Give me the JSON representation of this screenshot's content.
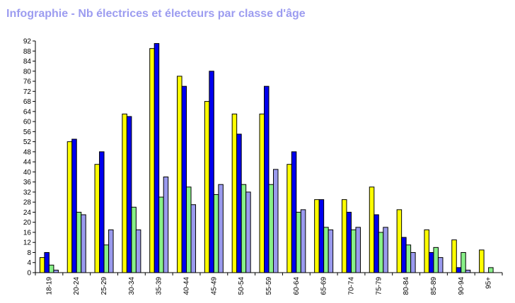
{
  "title": "Infographie - Nb électrices et électeurs par classe d'âge",
  "chart_data": {
    "type": "bar",
    "title": "Infographie - Nb électrices et électeurs par classe d'âge",
    "xlabel": "",
    "ylabel": "",
    "ylim": [
      0,
      92
    ],
    "yticks": [
      0,
      4,
      8,
      12,
      16,
      20,
      24,
      28,
      32,
      36,
      40,
      44,
      48,
      52,
      56,
      60,
      64,
      68,
      72,
      76,
      80,
      84,
      88,
      92
    ],
    "grid": false,
    "legend": "none",
    "categories": [
      "18-19",
      "20-24",
      "25-29",
      "30-34",
      "35-39",
      "40-44",
      "45-49",
      "50-54",
      "55-59",
      "60-64",
      "65-69",
      "70-74",
      "75-79",
      "80-84",
      "85-89",
      "90-94",
      "95+"
    ],
    "series": [
      {
        "color": "#ffff00",
        "values": [
          6,
          52,
          43,
          63,
          89,
          78,
          68,
          63,
          63,
          43,
          29,
          29,
          34,
          25,
          17,
          13,
          9
        ]
      },
      {
        "color": "#0000ee",
        "values": [
          8,
          53,
          48,
          62,
          91,
          74,
          80,
          55,
          74,
          48,
          29,
          24,
          23,
          14,
          8,
          2,
          0
        ]
      },
      {
        "color": "#88f088",
        "values": [
          3,
          24,
          11,
          26,
          30,
          34,
          31,
          35,
          35,
          24,
          18,
          17,
          16,
          11,
          10,
          8,
          2
        ]
      },
      {
        "color": "#9a9aee",
        "values": [
          1,
          23,
          17,
          17,
          38,
          27,
          35,
          32,
          41,
          25,
          17,
          18,
          18,
          8,
          6,
          1,
          0
        ]
      }
    ]
  }
}
